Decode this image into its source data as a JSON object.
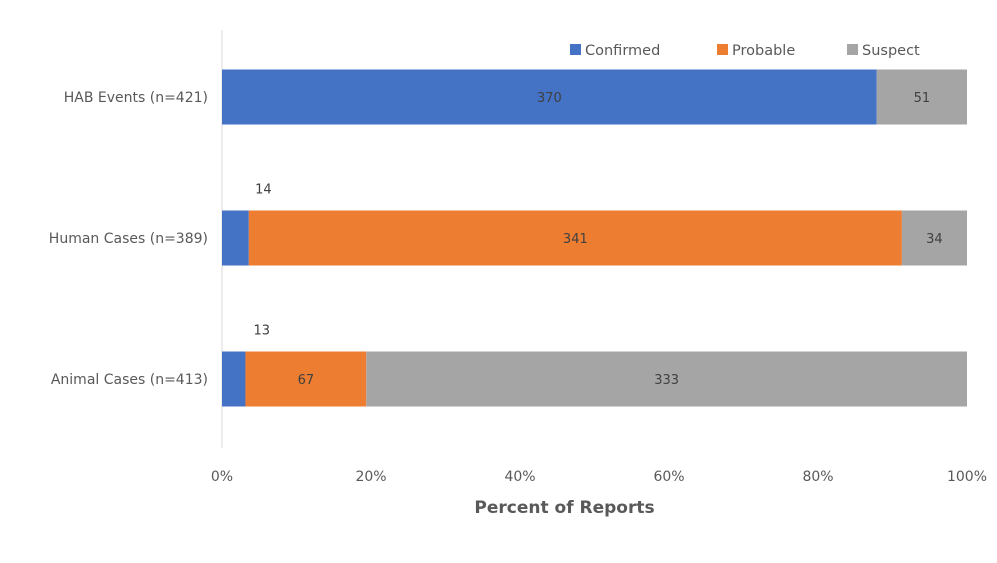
{
  "chart_data": {
    "type": "bar",
    "orientation": "horizontal",
    "stacked": "percent",
    "categories": [
      "HAB Events (n=421)",
      "Human Cases (n=389)",
      "Animal Cases (n=413)"
    ],
    "series": [
      {
        "name": "Confirmed",
        "color": "#4472C4",
        "values": [
          370,
          14,
          13
        ]
      },
      {
        "name": "Probable",
        "color": "#ED7D31",
        "values": [
          0,
          341,
          67
        ]
      },
      {
        "name": "Suspect",
        "color": "#A5A5A5",
        "values": [
          51,
          34,
          333
        ]
      }
    ],
    "xlabel": "Percent of Reports",
    "ylabel": "",
    "xlim": [
      0,
      100
    ],
    "xticks": [
      "0%",
      "20%",
      "40%",
      "60%",
      "80%",
      "100%"
    ],
    "legend": "top-right",
    "grid": false
  }
}
